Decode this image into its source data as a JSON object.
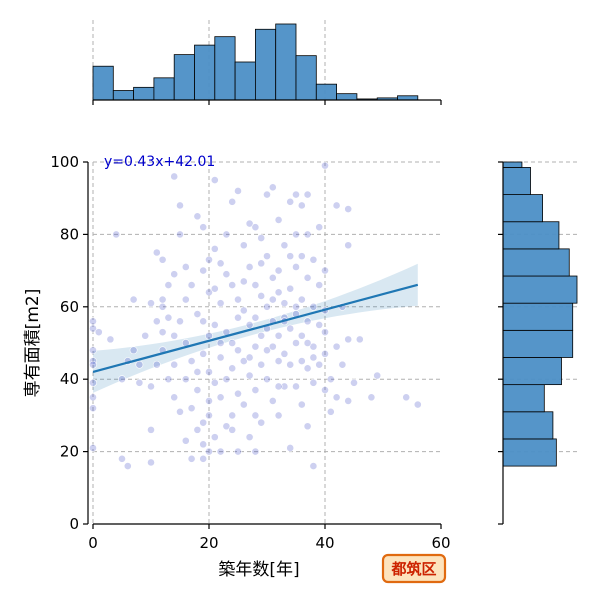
{
  "chart_data": {
    "type": "scatter",
    "xlabel": "築年数[年]",
    "ylabel": "専有面積[m2]",
    "xlim": [
      0,
      60
    ],
    "ylim": [
      0,
      100
    ],
    "xticks": [
      0,
      20,
      40,
      60
    ],
    "yticks": [
      0,
      20,
      40,
      60,
      80,
      100
    ],
    "grid": true,
    "annotation": "y=0.43x+42.01",
    "badge": "都筑区",
    "regression": {
      "slope": 0.43,
      "intercept": 42.01,
      "x_range": [
        0,
        56
      ]
    },
    "top_histogram": {
      "bins_x_start": 0,
      "bin_width": 3.5,
      "counts": [
        32,
        9,
        12,
        21,
        43,
        52,
        60,
        36,
        67,
        72,
        42,
        15,
        6,
        1,
        2,
        4,
        0
      ]
    },
    "right_histogram": {
      "bin_start": 16,
      "bin_width": 7.5,
      "counts_note": "",
      "counts": [
        62,
        58,
        48,
        68,
        81,
        81,
        86,
        77,
        65,
        46,
        32,
        22,
        9
      ]
    },
    "points_note": "",
    "points": [
      [
        0,
        56
      ],
      [
        0,
        54
      ],
      [
        0,
        48
      ],
      [
        0,
        45
      ],
      [
        0,
        44
      ],
      [
        0,
        39
      ],
      [
        0,
        35
      ],
      [
        0,
        32
      ],
      [
        0,
        21
      ],
      [
        1,
        53
      ],
      [
        3,
        51
      ],
      [
        4,
        80
      ],
      [
        5,
        18
      ],
      [
        5,
        40
      ],
      [
        6,
        16
      ],
      [
        6,
        45
      ],
      [
        7,
        48
      ],
      [
        7,
        62
      ],
      [
        8,
        39
      ],
      [
        8,
        44
      ],
      [
        9,
        52
      ],
      [
        10,
        61
      ],
      [
        10,
        38
      ],
      [
        10,
        26
      ],
      [
        10,
        17
      ],
      [
        11,
        75
      ],
      [
        11,
        56
      ],
      [
        11,
        44
      ],
      [
        12,
        73
      ],
      [
        12,
        62
      ],
      [
        12,
        53
      ],
      [
        12,
        48
      ],
      [
        13,
        66
      ],
      [
        13,
        57
      ],
      [
        13,
        40
      ],
      [
        14,
        69
      ],
      [
        14,
        44
      ],
      [
        14,
        96
      ],
      [
        14,
        35
      ],
      [
        15,
        31
      ],
      [
        15,
        80
      ],
      [
        15,
        56
      ],
      [
        15,
        88
      ],
      [
        16,
        71
      ],
      [
        16,
        62
      ],
      [
        16,
        50
      ],
      [
        16,
        23
      ],
      [
        17,
        66
      ],
      [
        17,
        45
      ],
      [
        17,
        32
      ],
      [
        18,
        85
      ],
      [
        18,
        58
      ],
      [
        18,
        37
      ],
      [
        18,
        26
      ],
      [
        19,
        82
      ],
      [
        19,
        70
      ],
      [
        19,
        47
      ],
      [
        19,
        28
      ],
      [
        19,
        22
      ],
      [
        20,
        73
      ],
      [
        20,
        64
      ],
      [
        20,
        52
      ],
      [
        20,
        42
      ],
      [
        20,
        30
      ],
      [
        20,
        20
      ],
      [
        21,
        95
      ],
      [
        21,
        76
      ],
      [
        21,
        55
      ],
      [
        21,
        39
      ],
      [
        21,
        24
      ],
      [
        22,
        72
      ],
      [
        22,
        61
      ],
      [
        22,
        46
      ],
      [
        22,
        35
      ],
      [
        22,
        20
      ],
      [
        23,
        80
      ],
      [
        23,
        69
      ],
      [
        23,
        53
      ],
      [
        23,
        27
      ],
      [
        24,
        89
      ],
      [
        24,
        66
      ],
      [
        24,
        50
      ],
      [
        24,
        43
      ],
      [
        24,
        30
      ],
      [
        25,
        92
      ],
      [
        25,
        62
      ],
      [
        25,
        57
      ],
      [
        25,
        48
      ],
      [
        25,
        20
      ],
      [
        26,
        77
      ],
      [
        26,
        59
      ],
      [
        26,
        45
      ],
      [
        26,
        33
      ],
      [
        27,
        83
      ],
      [
        27,
        71
      ],
      [
        27,
        55
      ],
      [
        27,
        41
      ],
      [
        27,
        24
      ],
      [
        28,
        82
      ],
      [
        28,
        66
      ],
      [
        28,
        57
      ],
      [
        28,
        49
      ],
      [
        28,
        37
      ],
      [
        28,
        20
      ],
      [
        29,
        79
      ],
      [
        29,
        63
      ],
      [
        29,
        52
      ],
      [
        29,
        44
      ],
      [
        29,
        28
      ],
      [
        30,
        91
      ],
      [
        30,
        74
      ],
      [
        30,
        60
      ],
      [
        30,
        48
      ],
      [
        30,
        40
      ],
      [
        31,
        93
      ],
      [
        31,
        68
      ],
      [
        31,
        56
      ],
      [
        31,
        49
      ],
      [
        31,
        34
      ],
      [
        32,
        84
      ],
      [
        32,
        70
      ],
      [
        32,
        64
      ],
      [
        32,
        52
      ],
      [
        32,
        45
      ],
      [
        32,
        30
      ],
      [
        33,
        77
      ],
      [
        33,
        61
      ],
      [
        33,
        57
      ],
      [
        33,
        47
      ],
      [
        33,
        38
      ],
      [
        34,
        89
      ],
      [
        34,
        74
      ],
      [
        34,
        65
      ],
      [
        34,
        54
      ],
      [
        34,
        44
      ],
      [
        34,
        21
      ],
      [
        35,
        91
      ],
      [
        35,
        80
      ],
      [
        35,
        71
      ],
      [
        35,
        58
      ],
      [
        35,
        50
      ],
      [
        35,
        38
      ],
      [
        36,
        88
      ],
      [
        36,
        74
      ],
      [
        36,
        62
      ],
      [
        36,
        45
      ],
      [
        36,
        33
      ],
      [
        37,
        91
      ],
      [
        37,
        80
      ],
      [
        37,
        68
      ],
      [
        37,
        56
      ],
      [
        37,
        43
      ],
      [
        37,
        27
      ],
      [
        38,
        73
      ],
      [
        38,
        60
      ],
      [
        38,
        49
      ],
      [
        38,
        39
      ],
      [
        38,
        16
      ],
      [
        39,
        82
      ],
      [
        39,
        66
      ],
      [
        39,
        55
      ],
      [
        39,
        44
      ],
      [
        40,
        99
      ],
      [
        40,
        70
      ],
      [
        40,
        59
      ],
      [
        40,
        47
      ],
      [
        40,
        37
      ],
      [
        41,
        40
      ],
      [
        41,
        31
      ],
      [
        42,
        88
      ],
      [
        42,
        49
      ],
      [
        42,
        35
      ],
      [
        43,
        60
      ],
      [
        43,
        44
      ],
      [
        44,
        87
      ],
      [
        44,
        77
      ],
      [
        44,
        51
      ],
      [
        44,
        34
      ],
      [
        45,
        39
      ],
      [
        46,
        51
      ],
      [
        48,
        35
      ],
      [
        49,
        41
      ],
      [
        54,
        35
      ],
      [
        56,
        33
      ],
      [
        12,
        60
      ],
      [
        26,
        67
      ],
      [
        29,
        72
      ],
      [
        33,
        56
      ],
      [
        18,
        42
      ],
      [
        22,
        50
      ],
      [
        27,
        46
      ],
      [
        31,
        62
      ],
      [
        36,
        52
      ],
      [
        24,
        26
      ],
      [
        20,
        34
      ],
      [
        14,
        52
      ],
      [
        16,
        40
      ],
      [
        19,
        56
      ],
      [
        21,
        65
      ],
      [
        23,
        40
      ],
      [
        25,
        36
      ],
      [
        28,
        30
      ],
      [
        30,
        54
      ],
      [
        32,
        38
      ],
      [
        35,
        60
      ],
      [
        37,
        50
      ],
      [
        38,
        46
      ],
      [
        40,
        53
      ],
      [
        17,
        18
      ],
      [
        19,
        18
      ]
    ]
  }
}
